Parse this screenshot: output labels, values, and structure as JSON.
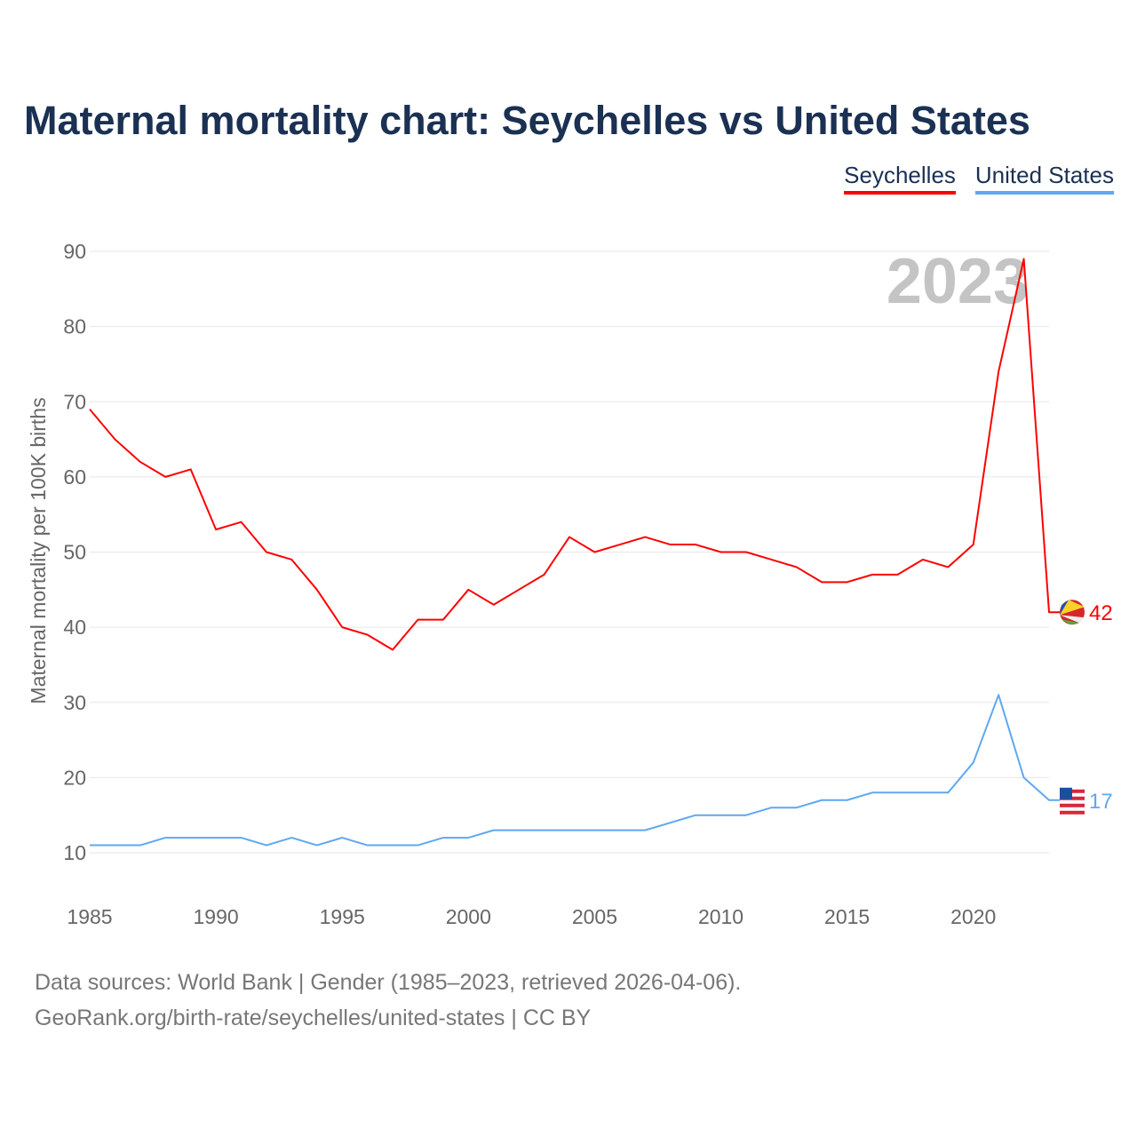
{
  "title": "Maternal mortality chart: Seychelles vs United States",
  "footer": {
    "line1": "Data sources: World Bank | Gender (1985–2023, retrieved 2026-04-06).",
    "line2": "GeoRank.org/birth-rate/seychelles/united-states | CC BY"
  },
  "chart_data": {
    "type": "line",
    "title": "Maternal mortality chart: Seychelles vs United States",
    "ylabel": "Maternal mortality per 100K births",
    "xlabel": "",
    "year_watermark": "2023",
    "ylim": [
      5,
      90
    ],
    "xlim": [
      1985,
      2023
    ],
    "yticks": [
      10,
      20,
      30,
      40,
      50,
      60,
      70,
      80,
      90
    ],
    "xticks": [
      1985,
      1990,
      1995,
      2000,
      2005,
      2010,
      2015,
      2020
    ],
    "grid": true,
    "legend_position": "top-right",
    "x": [
      1985,
      1986,
      1987,
      1988,
      1989,
      1990,
      1991,
      1992,
      1993,
      1994,
      1995,
      1996,
      1997,
      1998,
      1999,
      2000,
      2001,
      2002,
      2003,
      2004,
      2005,
      2006,
      2007,
      2008,
      2009,
      2010,
      2011,
      2012,
      2013,
      2014,
      2015,
      2016,
      2017,
      2018,
      2019,
      2020,
      2021,
      2022,
      2023
    ],
    "series": [
      {
        "name": "Seychelles",
        "color": "#ff0000",
        "end_label": "42",
        "values": [
          69,
          65,
          62,
          60,
          61,
          53,
          54,
          50,
          49,
          45,
          40,
          39,
          37,
          41,
          41,
          45,
          43,
          45,
          47,
          52,
          50,
          51,
          52,
          51,
          51,
          50,
          50,
          49,
          48,
          46,
          46,
          47,
          47,
          49,
          48,
          51,
          74,
          89,
          42
        ]
      },
      {
        "name": "United States",
        "color": "#5ea8f0",
        "end_label": "17",
        "values": [
          11,
          11,
          11,
          12,
          12,
          12,
          12,
          11,
          12,
          11,
          12,
          11,
          11,
          11,
          12,
          12,
          13,
          13,
          13,
          13,
          13,
          13,
          13,
          14,
          15,
          15,
          15,
          16,
          16,
          17,
          17,
          18,
          18,
          18,
          18,
          22,
          31,
          20,
          17
        ]
      }
    ]
  }
}
